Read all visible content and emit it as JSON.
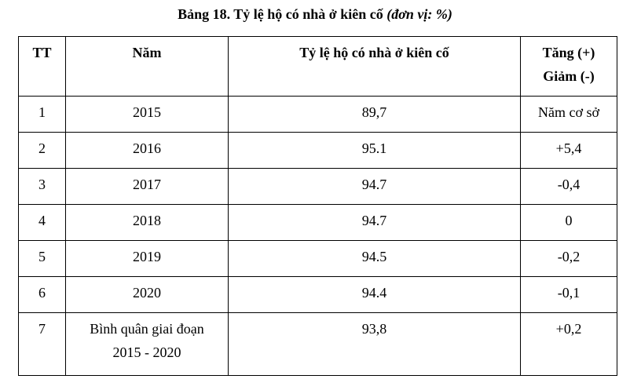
{
  "title": {
    "main": "Bảng 18. Tỷ lệ hộ có nhà ở kiên cố",
    "unit": "(đơn vị: %)"
  },
  "table": {
    "header": [
      "TT",
      "Năm",
      "Tỷ lệ hộ có nhà ở kiên cố",
      [
        "Tăng (+)",
        "Giảm (-)"
      ]
    ],
    "rows": [
      [
        "1",
        "2015",
        "89,7",
        "Năm cơ sở"
      ],
      [
        "2",
        "2016",
        "95.1",
        "+5,4"
      ],
      [
        "3",
        "2017",
        "94.7",
        "-0,4"
      ],
      [
        "4",
        "2018",
        "94.7",
        "0"
      ],
      [
        "5",
        "2019",
        "94.5",
        "-0,2"
      ],
      [
        "6",
        "2020",
        "94.4",
        "-0,1"
      ],
      [
        "7",
        [
          "Bình quân giai đoạn",
          "2015 - 2020"
        ],
        "93,8",
        "+0,2"
      ]
    ]
  }
}
